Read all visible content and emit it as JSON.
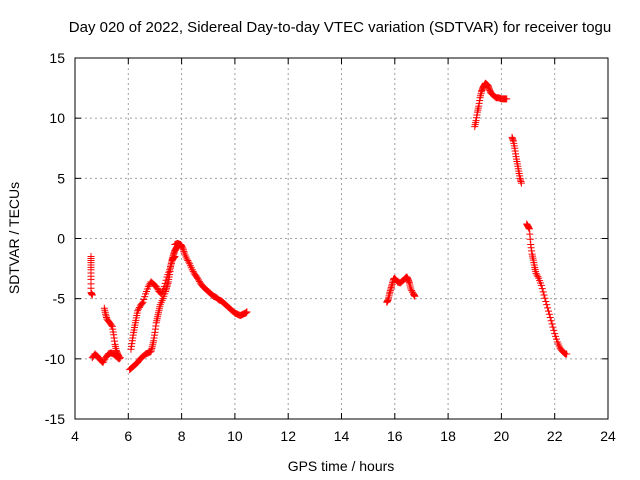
{
  "chart_data": {
    "type": "scatter",
    "title": "Day 020 of 2022, Sidereal Day-to-day VTEC variation (SDTVAR) for receiver togu",
    "xlabel": "GPS time / hours",
    "ylabel": "SDTVAR / TECUs",
    "xlim": [
      4,
      24
    ],
    "ylim": [
      -15,
      15
    ],
    "x_ticks": [
      4,
      6,
      8,
      10,
      12,
      14,
      16,
      18,
      20,
      22,
      24
    ],
    "x_tick_labels": [
      "4",
      "6",
      "8",
      "10",
      "12",
      "14",
      "16",
      "18",
      "20",
      "22",
      "24"
    ],
    "y_ticks": [
      -15,
      -10,
      -5,
      0,
      5,
      10,
      15
    ],
    "y_tick_labels": [
      "-15",
      "-10",
      "-5",
      "0",
      "5",
      "10",
      "15"
    ],
    "grid": true,
    "marker": "plus",
    "color": "#ff0000",
    "series": [
      {
        "name": "SDTVAR",
        "segments": [
          [
            [
              4.6,
              -1.5
            ],
            [
              4.6,
              -2.0
            ],
            [
              4.6,
              -2.6
            ],
            [
              4.6,
              -3.4
            ],
            [
              4.6,
              -4.5
            ],
            [
              4.65,
              -4.7
            ]
          ],
          [
            [
              4.65,
              -9.9
            ],
            [
              4.75,
              -9.6
            ],
            [
              4.85,
              -9.8
            ],
            [
              4.95,
              -10.1
            ],
            [
              5.05,
              -10.3
            ],
            [
              5.15,
              -9.9
            ],
            [
              5.25,
              -9.6
            ],
            [
              5.35,
              -9.5
            ],
            [
              5.45,
              -9.6
            ],
            [
              5.55,
              -9.8
            ],
            [
              5.65,
              -10.0
            ],
            [
              5.7,
              -9.9
            ]
          ],
          [
            [
              5.1,
              -5.8
            ],
            [
              5.15,
              -6.3
            ],
            [
              5.2,
              -6.7
            ],
            [
              5.3,
              -7.0
            ],
            [
              5.4,
              -7.3
            ],
            [
              5.45,
              -8.0
            ],
            [
              5.5,
              -8.8
            ],
            [
              5.55,
              -9.3
            ],
            [
              5.6,
              -9.6
            ],
            [
              5.65,
              -9.8
            ]
          ],
          [
            [
              6.05,
              -10.9
            ],
            [
              6.15,
              -10.7
            ],
            [
              6.25,
              -10.5
            ],
            [
              6.35,
              -10.3
            ],
            [
              6.45,
              -10.0
            ],
            [
              6.55,
              -9.8
            ],
            [
              6.65,
              -9.6
            ],
            [
              6.75,
              -9.5
            ],
            [
              6.85,
              -9.4
            ],
            [
              6.9,
              -9.0
            ],
            [
              6.95,
              -8.5
            ],
            [
              7.0,
              -7.8
            ],
            [
              7.05,
              -7.0
            ],
            [
              7.1,
              -6.5
            ],
            [
              7.15,
              -6.0
            ],
            [
              7.2,
              -5.5
            ],
            [
              7.3,
              -5.0
            ],
            [
              7.4,
              -4.4
            ],
            [
              7.45,
              -4.0
            ],
            [
              7.5,
              -3.6
            ],
            [
              7.55,
              -3.0
            ],
            [
              7.6,
              -2.2
            ],
            [
              7.65,
              -1.7
            ],
            [
              7.7,
              -1.3
            ],
            [
              7.75,
              -1.0
            ],
            [
              7.8,
              -0.8
            ],
            [
              7.85,
              -0.6
            ],
            [
              7.9,
              -0.5
            ],
            [
              7.95,
              -0.5
            ],
            [
              8.0,
              -0.6
            ]
          ],
          [
            [
              6.1,
              -9.2
            ],
            [
              6.15,
              -8.5
            ],
            [
              6.2,
              -7.8
            ],
            [
              6.25,
              -7.2
            ],
            [
              6.3,
              -6.6
            ],
            [
              6.35,
              -6.0
            ],
            [
              6.45,
              -5.6
            ],
            [
              6.55,
              -5.3
            ],
            [
              6.65,
              -4.6
            ],
            [
              6.75,
              -4.0
            ],
            [
              6.85,
              -3.6
            ],
            [
              6.95,
              -3.8
            ],
            [
              7.05,
              -4.0
            ],
            [
              7.15,
              -4.4
            ],
            [
              7.25,
              -4.6
            ],
            [
              7.35,
              -4.0
            ],
            [
              7.45,
              -3.2
            ],
            [
              7.55,
              -2.6
            ],
            [
              7.65,
              -1.8
            ],
            [
              7.7,
              -1.6
            ],
            [
              7.75,
              -1.5
            ]
          ],
          [
            [
              7.75,
              -0.5
            ],
            [
              7.85,
              -0.4
            ],
            [
              7.95,
              -0.5
            ],
            [
              8.05,
              -0.8
            ],
            [
              8.1,
              -1.2
            ],
            [
              8.2,
              -1.7
            ],
            [
              8.3,
              -2.1
            ],
            [
              8.4,
              -2.6
            ],
            [
              8.5,
              -3.0
            ],
            [
              8.6,
              -3.3
            ],
            [
              8.7,
              -3.7
            ],
            [
              8.8,
              -4.0
            ],
            [
              8.9,
              -4.2
            ],
            [
              9.0,
              -4.4
            ],
            [
              9.1,
              -4.6
            ],
            [
              9.2,
              -4.8
            ],
            [
              9.3,
              -4.9
            ],
            [
              9.4,
              -5.1
            ],
            [
              9.5,
              -5.2
            ],
            [
              9.6,
              -5.4
            ],
            [
              9.7,
              -5.6
            ],
            [
              9.8,
              -5.8
            ],
            [
              9.9,
              -6.0
            ],
            [
              10.0,
              -6.2
            ],
            [
              10.1,
              -6.3
            ],
            [
              10.2,
              -6.4
            ],
            [
              10.3,
              -6.3
            ],
            [
              10.4,
              -6.2
            ],
            [
              10.45,
              -6.1
            ]
          ],
          [
            [
              15.7,
              -5.3
            ],
            [
              15.75,
              -5.1
            ],
            [
              15.8,
              -4.6
            ],
            [
              15.85,
              -4.2
            ],
            [
              15.9,
              -3.8
            ],
            [
              15.95,
              -3.4
            ],
            [
              16.0,
              -3.3
            ],
            [
              16.1,
              -3.6
            ],
            [
              16.2,
              -3.7
            ],
            [
              16.3,
              -3.5
            ],
            [
              16.4,
              -3.3
            ],
            [
              16.45,
              -3.2
            ],
            [
              16.5,
              -3.4
            ],
            [
              16.55,
              -3.7
            ],
            [
              16.6,
              -4.2
            ],
            [
              16.7,
              -4.6
            ],
            [
              16.75,
              -4.8
            ]
          ],
          [
            [
              19.0,
              9.3
            ],
            [
              19.05,
              9.8
            ],
            [
              19.1,
              10.5
            ],
            [
              19.15,
              11.0
            ],
            [
              19.2,
              11.7
            ],
            [
              19.25,
              12.2
            ],
            [
              19.3,
              12.5
            ],
            [
              19.35,
              12.7
            ],
            [
              19.4,
              12.9
            ],
            [
              19.45,
              12.8
            ],
            [
              19.5,
              12.7
            ],
            [
              19.55,
              12.4
            ],
            [
              19.6,
              12.1
            ],
            [
              19.7,
              11.9
            ],
            [
              19.8,
              11.7
            ],
            [
              19.9,
              11.7
            ],
            [
              20.0,
              11.6
            ],
            [
              20.1,
              11.6
            ],
            [
              20.2,
              11.6
            ]
          ],
          [
            [
              20.4,
              8.4
            ],
            [
              20.45,
              8.1
            ],
            [
              20.5,
              7.5
            ],
            [
              20.55,
              6.8
            ],
            [
              20.6,
              6.2
            ],
            [
              20.65,
              5.6
            ],
            [
              20.7,
              5.0
            ],
            [
              20.75,
              4.6
            ]
          ],
          [
            [
              20.95,
              1.2
            ],
            [
              21.0,
              1.0
            ],
            [
              21.05,
              0.8
            ],
            [
              21.1,
              -0.5
            ],
            [
              21.15,
              -1.3
            ],
            [
              21.2,
              -1.8
            ],
            [
              21.25,
              -2.4
            ],
            [
              21.3,
              -2.9
            ],
            [
              21.4,
              -3.3
            ],
            [
              21.5,
              -3.9
            ],
            [
              21.6,
              -4.7
            ],
            [
              21.7,
              -5.5
            ],
            [
              21.8,
              -6.3
            ],
            [
              21.9,
              -7.1
            ],
            [
              22.0,
              -7.9
            ],
            [
              22.1,
              -8.6
            ],
            [
              22.2,
              -9.1
            ],
            [
              22.3,
              -9.4
            ],
            [
              22.4,
              -9.6
            ],
            [
              22.45,
              -9.6
            ]
          ]
        ]
      }
    ]
  }
}
